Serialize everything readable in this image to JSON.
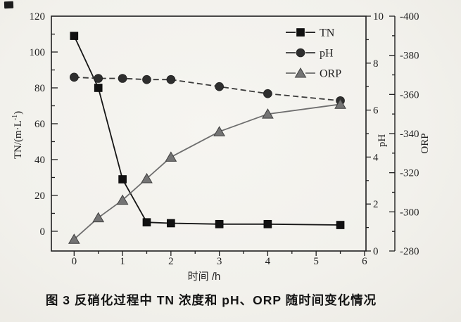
{
  "figure": {
    "caption": "图 3  反硝化过程中 TN 浓度和 pH、ORP 随时间变化情况"
  },
  "chart_data": {
    "type": "line",
    "title": "",
    "xlabel": "时间 /h",
    "x": [
      0,
      0.5,
      1,
      1.5,
      2,
      3,
      4,
      5.5
    ],
    "xlim": [
      -0.47,
      6.03
    ],
    "x_ticks": [
      0,
      1,
      2,
      3,
      4,
      5,
      6
    ],
    "x_minor_step": 0.5,
    "grid": false,
    "legend_position": "top-right-inside",
    "series": [
      {
        "name": "TN",
        "axis": "tn",
        "marker": "square",
        "line_style": "solid",
        "color": "#161616",
        "marker_fill": "#111111",
        "marker_edge": "#000000",
        "values": [
          109,
          80,
          29,
          5,
          4.5,
          4,
          4,
          3.5
        ]
      },
      {
        "name": "pH",
        "axis": "ph",
        "marker": "circle",
        "line_style": "dashed",
        "color": "#3a3a3a",
        "marker_fill": "#2e2e2e",
        "marker_edge": "#161616",
        "values": [
          7.4,
          7.35,
          7.35,
          7.3,
          7.3,
          7.0,
          6.7,
          6.4
        ]
      },
      {
        "name": "ORP",
        "axis": "orp",
        "marker": "triangle",
        "line_style": "solid",
        "color": "#6e6e6e",
        "marker_fill": "#747474",
        "marker_edge": "#3e3e3e",
        "values": [
          -286,
          -297,
          -306,
          -317,
          -328,
          -341,
          -350,
          -355
        ]
      }
    ],
    "axes": {
      "tn": {
        "label": "TN/(m·L⁻¹)",
        "side": "left",
        "lim_bottom": -11,
        "lim_top": 120,
        "ticks": [
          0,
          20,
          40,
          60,
          80,
          100,
          120
        ],
        "minor_step": 10
      },
      "ph": {
        "label": "pH",
        "side": "right",
        "lim_bottom": 0,
        "lim_top": 10,
        "ticks": [
          0,
          2,
          4,
          6,
          8,
          10
        ],
        "minor_step": 1
      },
      "orp": {
        "label": "ORP",
        "side": "right_offset",
        "lim_bottom": -280,
        "lim_top": -400,
        "ticks": [
          -280,
          -300,
          -320,
          -340,
          -360,
          -380,
          -400
        ],
        "minor_step": 10
      }
    },
    "legend": [
      {
        "label": "TN",
        "marker": "square"
      },
      {
        "label": "pH",
        "marker": "circle"
      },
      {
        "label": "ORP",
        "marker": "triangle"
      }
    ]
  }
}
